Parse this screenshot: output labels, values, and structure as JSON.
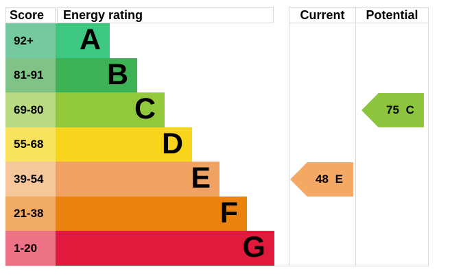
{
  "title": "EPC energy efficiency rating chart",
  "header": {
    "score": "Score",
    "energy_rating": "Energy rating",
    "current": "Current",
    "potential": "Potential"
  },
  "colors": {
    "border": "#d9d9d9",
    "text": "#000000",
    "current_arrow": "#f3a863",
    "potential_arrow": "#8dc63e"
  },
  "chart_data": {
    "type": "epc_energy_rating",
    "bands": [
      {
        "score": "92+",
        "letter": "A",
        "bar_color": "#3dc781",
        "score_tint": "#74c99e"
      },
      {
        "score": "81-91",
        "letter": "B",
        "bar_color": "#3cb254",
        "score_tint": "#80c386"
      },
      {
        "score": "69-80",
        "letter": "C",
        "bar_color": "#92c93c",
        "score_tint": "#b9da80"
      },
      {
        "score": "55-68",
        "letter": "D",
        "bar_color": "#f9d41c",
        "score_tint": "#f8e25e"
      },
      {
        "score": "39-54",
        "letter": "E",
        "bar_color": "#f0a263",
        "score_tint": "#f5c79b"
      },
      {
        "score": "21-38",
        "letter": "F",
        "bar_color": "#ea830f",
        "score_tint": "#f2ab64"
      },
      {
        "score": "1-20",
        "letter": "G",
        "bar_color": "#e11a3d",
        "score_tint": "#ee7286"
      }
    ],
    "current": {
      "value": 48,
      "band": "E",
      "display": "48 E",
      "color": "#f3a863"
    },
    "potential": {
      "value": 75,
      "band": "C",
      "display": "75 C",
      "color": "#8dc63e"
    }
  }
}
